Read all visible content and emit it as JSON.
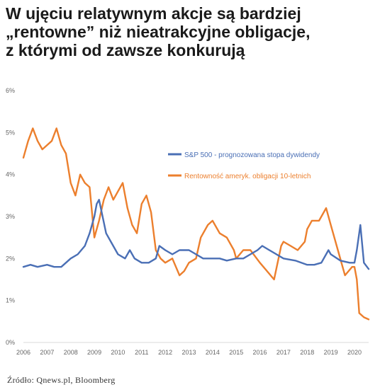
{
  "title": {
    "line1": "W ujęciu relatywnym akcje są bardziej",
    "line2": "„rentowne” niż nieatrakcyjne obligacje,",
    "line3": "z którymi od zawsze konkurują"
  },
  "source": "Źródło: Qnews.pl, Bloomberg",
  "chart_data": {
    "type": "line",
    "title": "",
    "xlabel": "",
    "ylabel": "",
    "xlim": [
      2006,
      2020.6
    ],
    "ylim": [
      0,
      6
    ],
    "grid": false,
    "legend_placement": "top-right",
    "x_ticks": [
      "2006",
      "2007",
      "2008",
      "2009",
      "2010",
      "2011",
      "2012",
      "2013",
      "2014",
      "2015",
      "2016",
      "2017",
      "2018",
      "2019",
      "2020"
    ],
    "y_ticks": [
      "0%",
      "1%",
      "2%",
      "3%",
      "4%",
      "5%",
      "6%"
    ],
    "series": [
      {
        "name": "S&P 500 - prognozowana stopa dywidendy",
        "color": "#4a6fb5",
        "x": [
          2006.0,
          2006.3,
          2006.6,
          2007.0,
          2007.3,
          2007.6,
          2007.8,
          2008.0,
          2008.3,
          2008.6,
          2008.8,
          2009.0,
          2009.1,
          2009.2,
          2009.35,
          2009.5,
          2009.7,
          2010.0,
          2010.3,
          2010.5,
          2010.7,
          2011.0,
          2011.3,
          2011.6,
          2011.75,
          2012.0,
          2012.3,
          2012.6,
          2013.0,
          2013.3,
          2013.6,
          2014.0,
          2014.3,
          2014.6,
          2015.0,
          2015.3,
          2015.6,
          2015.9,
          2016.1,
          2016.4,
          2016.7,
          2017.0,
          2017.5,
          2018.0,
          2018.3,
          2018.6,
          2018.9,
          2019.0,
          2019.4,
          2019.8,
          2020.0,
          2020.1,
          2020.25,
          2020.4,
          2020.6
        ],
        "y": [
          1.8,
          1.85,
          1.8,
          1.85,
          1.8,
          1.8,
          1.9,
          2.0,
          2.1,
          2.3,
          2.6,
          3.0,
          3.3,
          3.4,
          3.0,
          2.6,
          2.4,
          2.1,
          2.0,
          2.2,
          2.0,
          1.9,
          1.9,
          2.0,
          2.3,
          2.2,
          2.1,
          2.2,
          2.2,
          2.1,
          2.0,
          2.0,
          2.0,
          1.95,
          2.0,
          2.0,
          2.1,
          2.2,
          2.3,
          2.2,
          2.1,
          2.0,
          1.95,
          1.85,
          1.85,
          1.9,
          2.2,
          2.1,
          1.95,
          1.9,
          1.9,
          2.2,
          2.8,
          1.9,
          1.75
        ]
      },
      {
        "name": "Rentowność ameryk. obligacji 10-letnich",
        "color": "#ec7f2d",
        "x": [
          2006.0,
          2006.2,
          2006.4,
          2006.6,
          2006.8,
          2007.0,
          2007.2,
          2007.4,
          2007.6,
          2007.8,
          2008.0,
          2008.2,
          2008.4,
          2008.6,
          2008.8,
          2009.0,
          2009.2,
          2009.4,
          2009.6,
          2009.8,
          2010.0,
          2010.2,
          2010.4,
          2010.6,
          2010.8,
          2011.0,
          2011.2,
          2011.4,
          2011.6,
          2011.8,
          2012.0,
          2012.3,
          2012.6,
          2012.8,
          2013.0,
          2013.3,
          2013.5,
          2013.8,
          2014.0,
          2014.3,
          2014.6,
          2014.9,
          2015.0,
          2015.3,
          2015.6,
          2016.0,
          2016.3,
          2016.6,
          2016.9,
          2017.0,
          2017.3,
          2017.6,
          2017.9,
          2018.0,
          2018.2,
          2018.5,
          2018.8,
          2019.0,
          2019.3,
          2019.6,
          2019.9,
          2020.0,
          2020.1,
          2020.2,
          2020.4,
          2020.6
        ],
        "y": [
          4.4,
          4.8,
          5.1,
          4.8,
          4.6,
          4.7,
          4.8,
          5.1,
          4.7,
          4.5,
          3.8,
          3.5,
          4.0,
          3.8,
          3.7,
          2.5,
          2.9,
          3.4,
          3.7,
          3.4,
          3.6,
          3.8,
          3.2,
          2.8,
          2.6,
          3.3,
          3.5,
          3.1,
          2.2,
          2.0,
          1.9,
          2.0,
          1.6,
          1.7,
          1.9,
          2.0,
          2.5,
          2.8,
          2.9,
          2.6,
          2.5,
          2.2,
          2.0,
          2.2,
          2.2,
          1.9,
          1.7,
          1.5,
          2.3,
          2.4,
          2.3,
          2.2,
          2.4,
          2.7,
          2.9,
          2.9,
          3.2,
          2.8,
          2.2,
          1.6,
          1.8,
          1.8,
          1.5,
          0.7,
          0.6,
          0.55
        ]
      }
    ]
  }
}
